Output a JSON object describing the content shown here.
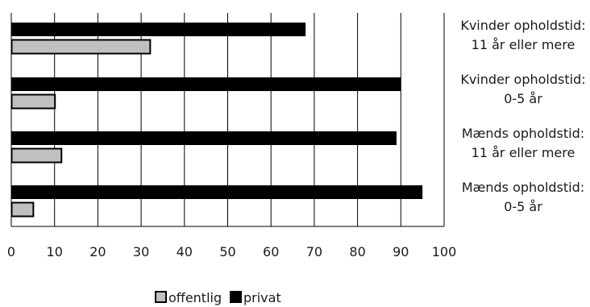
{
  "chart_data": {
    "type": "bar",
    "orientation": "horizontal",
    "title": "",
    "xlabel": "",
    "ylabel": "",
    "xlim": [
      0,
      100
    ],
    "xticks": [
      0,
      10,
      20,
      30,
      40,
      50,
      60,
      70,
      80,
      90,
      100
    ],
    "grid": "vertical",
    "category_labels_position": "right",
    "legend_position": "bottom",
    "categories": [
      [
        "Kvinder opholdstid:",
        "11 år eller mere"
      ],
      [
        "Kvinder opholdstid:",
        "0-5 år"
      ],
      [
        "Mænds opholdstid:",
        "11 år eller mere"
      ],
      [
        "Mænds opholdstid:",
        "0-5 år"
      ]
    ],
    "series": [
      {
        "name": "privat",
        "color": "#000000",
        "values": [
          68,
          90,
          89,
          95
        ]
      },
      {
        "name": "offentlig",
        "color": "#c0c0c0",
        "values": [
          32,
          10,
          11.5,
          5
        ]
      }
    ]
  }
}
